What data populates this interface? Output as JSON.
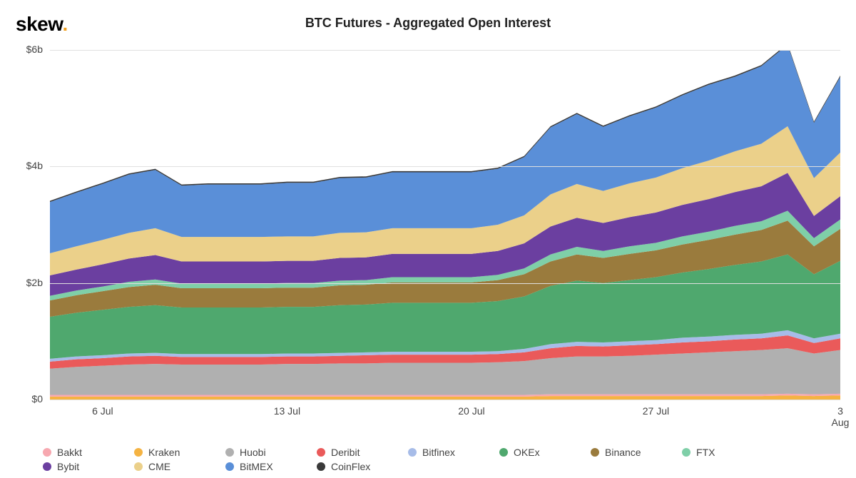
{
  "logo": {
    "text": "skew",
    "dot": "."
  },
  "chart": {
    "type": "stacked-area",
    "title": "BTC Futures - Aggregated Open Interest",
    "background_color": "#ffffff",
    "grid_color": "#e0e0e0",
    "axis_fontsize": 14,
    "title_fontsize": 18,
    "title_fontweight": 700,
    "y_axis": {
      "min": 0,
      "max": 6,
      "ticks": [
        {
          "value": 0,
          "label": "$0"
        },
        {
          "value": 2,
          "label": "$2b"
        },
        {
          "value": 4,
          "label": "$4b"
        },
        {
          "value": 6,
          "label": "$6b"
        }
      ]
    },
    "x_axis": {
      "ticks": [
        {
          "index": 2,
          "label": "6 Jul"
        },
        {
          "index": 9,
          "label": "13 Jul"
        },
        {
          "index": 16,
          "label": "20 Jul"
        },
        {
          "index": 23,
          "label": "27 Jul"
        },
        {
          "index": 30,
          "label": "3 Aug"
        }
      ],
      "point_count": 31
    },
    "series": [
      {
        "name": "Bakkt",
        "color": "#f7a8b0",
        "values": [
          0.03,
          0.03,
          0.03,
          0.03,
          0.03,
          0.03,
          0.03,
          0.03,
          0.03,
          0.03,
          0.03,
          0.03,
          0.03,
          0.03,
          0.03,
          0.03,
          0.03,
          0.03,
          0.03,
          0.03,
          0.03,
          0.03,
          0.03,
          0.03,
          0.03,
          0.03,
          0.03,
          0.03,
          0.03,
          0.03,
          0.03
        ]
      },
      {
        "name": "Kraken",
        "color": "#f5b342",
        "values": [
          0.05,
          0.05,
          0.05,
          0.05,
          0.05,
          0.05,
          0.05,
          0.05,
          0.05,
          0.05,
          0.05,
          0.05,
          0.05,
          0.05,
          0.05,
          0.05,
          0.05,
          0.05,
          0.05,
          0.06,
          0.06,
          0.06,
          0.06,
          0.06,
          0.06,
          0.06,
          0.06,
          0.06,
          0.07,
          0.06,
          0.07
        ]
      },
      {
        "name": "Huobi",
        "color": "#b0b0b0",
        "values": [
          0.45,
          0.48,
          0.5,
          0.52,
          0.53,
          0.52,
          0.52,
          0.52,
          0.52,
          0.53,
          0.53,
          0.54,
          0.54,
          0.55,
          0.55,
          0.55,
          0.55,
          0.56,
          0.58,
          0.62,
          0.65,
          0.65,
          0.66,
          0.68,
          0.7,
          0.72,
          0.74,
          0.76,
          0.78,
          0.7,
          0.75
        ]
      },
      {
        "name": "Deribit",
        "color": "#ea5a5a",
        "values": [
          0.12,
          0.13,
          0.13,
          0.14,
          0.14,
          0.13,
          0.13,
          0.13,
          0.13,
          0.13,
          0.13,
          0.13,
          0.14,
          0.14,
          0.14,
          0.14,
          0.14,
          0.14,
          0.15,
          0.17,
          0.18,
          0.17,
          0.18,
          0.18,
          0.19,
          0.19,
          0.2,
          0.2,
          0.22,
          0.18,
          0.2
        ]
      },
      {
        "name": "Bitfinex",
        "color": "#a7bce8",
        "values": [
          0.05,
          0.05,
          0.05,
          0.05,
          0.05,
          0.05,
          0.05,
          0.05,
          0.05,
          0.05,
          0.05,
          0.05,
          0.05,
          0.05,
          0.05,
          0.05,
          0.05,
          0.05,
          0.06,
          0.07,
          0.07,
          0.07,
          0.07,
          0.07,
          0.08,
          0.08,
          0.08,
          0.08,
          0.09,
          0.08,
          0.08
        ]
      },
      {
        "name": "OKEx",
        "color": "#4fa86e",
        "values": [
          0.72,
          0.75,
          0.78,
          0.8,
          0.82,
          0.8,
          0.8,
          0.8,
          0.8,
          0.8,
          0.8,
          0.82,
          0.82,
          0.84,
          0.84,
          0.84,
          0.84,
          0.86,
          0.9,
          1.0,
          1.05,
          1.02,
          1.05,
          1.08,
          1.12,
          1.16,
          1.2,
          1.24,
          1.3,
          1.1,
          1.25
        ]
      },
      {
        "name": "Binance",
        "color": "#9a7b3d",
        "values": [
          0.28,
          0.3,
          0.32,
          0.34,
          0.35,
          0.33,
          0.33,
          0.33,
          0.33,
          0.33,
          0.33,
          0.34,
          0.34,
          0.35,
          0.35,
          0.35,
          0.35,
          0.36,
          0.38,
          0.42,
          0.45,
          0.43,
          0.45,
          0.46,
          0.48,
          0.5,
          0.52,
          0.54,
          0.58,
          0.48,
          0.55
        ]
      },
      {
        "name": "FTX",
        "color": "#7fcfa8",
        "values": [
          0.08,
          0.08,
          0.08,
          0.09,
          0.09,
          0.08,
          0.08,
          0.08,
          0.08,
          0.08,
          0.08,
          0.08,
          0.08,
          0.09,
          0.09,
          0.09,
          0.09,
          0.09,
          0.1,
          0.12,
          0.13,
          0.12,
          0.13,
          0.13,
          0.14,
          0.14,
          0.15,
          0.15,
          0.17,
          0.14,
          0.16
        ]
      },
      {
        "name": "Bybit",
        "color": "#6b3fa0",
        "values": [
          0.35,
          0.36,
          0.38,
          0.4,
          0.42,
          0.38,
          0.38,
          0.38,
          0.38,
          0.38,
          0.38,
          0.39,
          0.39,
          0.4,
          0.4,
          0.4,
          0.4,
          0.41,
          0.43,
          0.48,
          0.5,
          0.48,
          0.5,
          0.52,
          0.54,
          0.56,
          0.58,
          0.6,
          0.65,
          0.38,
          0.4
        ]
      },
      {
        "name": "CME",
        "color": "#ebd08a",
        "values": [
          0.38,
          0.4,
          0.42,
          0.44,
          0.46,
          0.42,
          0.42,
          0.42,
          0.42,
          0.42,
          0.42,
          0.43,
          0.43,
          0.44,
          0.44,
          0.44,
          0.44,
          0.45,
          0.48,
          0.55,
          0.58,
          0.55,
          0.58,
          0.6,
          0.63,
          0.66,
          0.7,
          0.73,
          0.8,
          0.65,
          0.75
        ]
      },
      {
        "name": "BitMEX",
        "color": "#5a8fd8",
        "values": [
          0.88,
          0.92,
          0.96,
          1.0,
          1.0,
          0.88,
          0.9,
          0.9,
          0.9,
          0.92,
          0.92,
          0.94,
          0.94,
          0.96,
          0.96,
          0.96,
          0.96,
          0.96,
          1.0,
          1.15,
          1.2,
          1.1,
          1.15,
          1.2,
          1.25,
          1.3,
          1.28,
          1.33,
          1.4,
          0.95,
          1.3
        ]
      },
      {
        "name": "CoinFlex",
        "color": "#3a3a3a",
        "values": [
          0.02,
          0.02,
          0.02,
          0.02,
          0.02,
          0.02,
          0.02,
          0.02,
          0.02,
          0.02,
          0.02,
          0.02,
          0.02,
          0.02,
          0.02,
          0.02,
          0.02,
          0.02,
          0.02,
          0.02,
          0.02,
          0.02,
          0.02,
          0.02,
          0.02,
          0.02,
          0.02,
          0.02,
          0.02,
          0.02,
          0.02
        ]
      }
    ],
    "stack_order": [
      "Kraken",
      "Bakkt",
      "Huobi",
      "Deribit",
      "Bitfinex",
      "OKEx",
      "Binance",
      "FTX",
      "Bybit",
      "CME",
      "BitMEX",
      "CoinFlex"
    ],
    "legend_order": [
      "Bakkt",
      "Kraken",
      "Huobi",
      "Deribit",
      "Bitfinex",
      "OKEx",
      "Binance",
      "FTX",
      "Bybit",
      "CME",
      "BitMEX",
      "CoinFlex"
    ]
  }
}
